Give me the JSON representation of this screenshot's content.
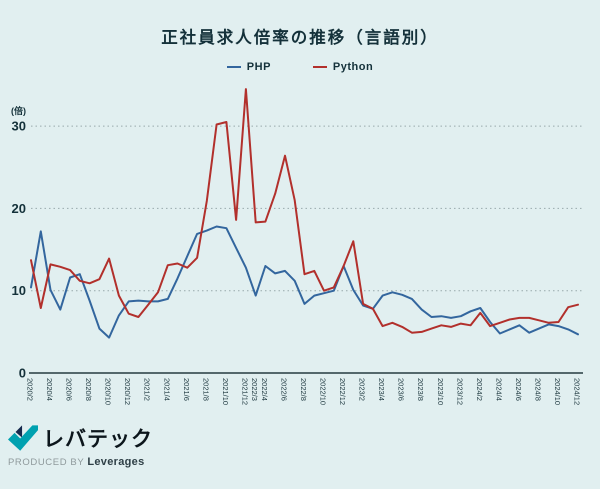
{
  "footer": {
    "logo_text": "レバテック",
    "produced_by": "PRODUCED BY",
    "company": "Leverages"
  },
  "colors": {
    "background": "#e1eff0",
    "title_text": "#14313a",
    "gridline": "#98a9ab",
    "axis_line": "#263b40",
    "php_line": "#33669e",
    "python_line": "#b2302c",
    "logo_teal": "#00a1b0",
    "logo_navy": "#16294d"
  },
  "chart_data": {
    "type": "line",
    "title": "正社員求人倍率の推移（言語別）",
    "y_unit": "(倍)",
    "ylim": [
      0,
      35
    ],
    "yticks": [
      0,
      10,
      20,
      30
    ],
    "grid": "horizontal dotted",
    "legend_position": "top center",
    "x_tick_labels": [
      "2020/2",
      "2020/4",
      "2020/6",
      "2020/8",
      "2020/10",
      "2020/12",
      "2021/2",
      "2021/4",
      "2021/6",
      "2021/8",
      "2021/10",
      "2021/12",
      "2022/3",
      "2022/4",
      "2022/6",
      "2022/8",
      "2022/10",
      "2022/12",
      "2023/2",
      "2023/4",
      "2023/6",
      "2023/8",
      "2023/10",
      "2023/12",
      "2024/2",
      "2024/4",
      "2024/6",
      "2024/8",
      "2024/10",
      "2024/12"
    ],
    "x": [
      "2020/2",
      "2020/3",
      "2020/4",
      "2020/5",
      "2020/6",
      "2020/7",
      "2020/8",
      "2020/9",
      "2020/10",
      "2020/11",
      "2020/12",
      "2021/1",
      "2021/2",
      "2021/3",
      "2021/4",
      "2021/5",
      "2021/6",
      "2021/7",
      "2021/8",
      "2021/9",
      "2021/10",
      "2021/11",
      "2021/12",
      "2022/3",
      "2022/4",
      "2022/5",
      "2022/6",
      "2022/7",
      "2022/8",
      "2022/9",
      "2022/10",
      "2022/11",
      "2022/12",
      "2023/1",
      "2023/2",
      "2023/3",
      "2023/4",
      "2023/5",
      "2023/6",
      "2023/7",
      "2023/8",
      "2023/9",
      "2023/10",
      "2023/11",
      "2023/12",
      "2024/1",
      "2024/2",
      "2024/3",
      "2024/4",
      "2024/5",
      "2024/6",
      "2024/7",
      "2024/8",
      "2024/9",
      "2024/10",
      "2024/11",
      "2024/12"
    ],
    "series": [
      {
        "name": "PHP",
        "color": "#33669e",
        "values": [
          10.4,
          17.2,
          10.1,
          7.7,
          11.6,
          12.0,
          8.8,
          5.4,
          4.3,
          7.0,
          8.7,
          8.8,
          8.7,
          8.7,
          9.0,
          11.5,
          14.2,
          16.9,
          17.3,
          17.8,
          17.6,
          15.2,
          12.8,
          9.4,
          13.0,
          12.1,
          12.4,
          11.2,
          8.4,
          9.4,
          9.7,
          10.0,
          13.0,
          10.1,
          8.2,
          7.8,
          9.4,
          9.8,
          9.5,
          9.0,
          7.7,
          6.8,
          6.9,
          6.7,
          6.9,
          7.5,
          7.9,
          6.2,
          4.8,
          5.3,
          5.8,
          4.9,
          5.4,
          5.9,
          5.7,
          5.3,
          4.7
        ]
      },
      {
        "name": "Python",
        "color": "#b2302c",
        "values": [
          13.7,
          7.9,
          13.2,
          12.9,
          12.5,
          11.2,
          10.9,
          11.4,
          13.9,
          9.4,
          7.2,
          6.8,
          8.3,
          9.8,
          13.1,
          13.3,
          12.8,
          14.0,
          20.9,
          30.2,
          30.5,
          18.6,
          34.5,
          18.3,
          18.4,
          21.8,
          26.4,
          21.0,
          12.0,
          12.4,
          10.0,
          10.4,
          13.0,
          16.0,
          8.4,
          7.8,
          5.7,
          6.1,
          5.6,
          4.9,
          5.0,
          5.4,
          5.8,
          5.6,
          6.0,
          5.8,
          7.3,
          5.7,
          6.1,
          6.5,
          6.7,
          6.7,
          6.4,
          6.1,
          6.2,
          8.0,
          8.3
        ]
      }
    ]
  }
}
